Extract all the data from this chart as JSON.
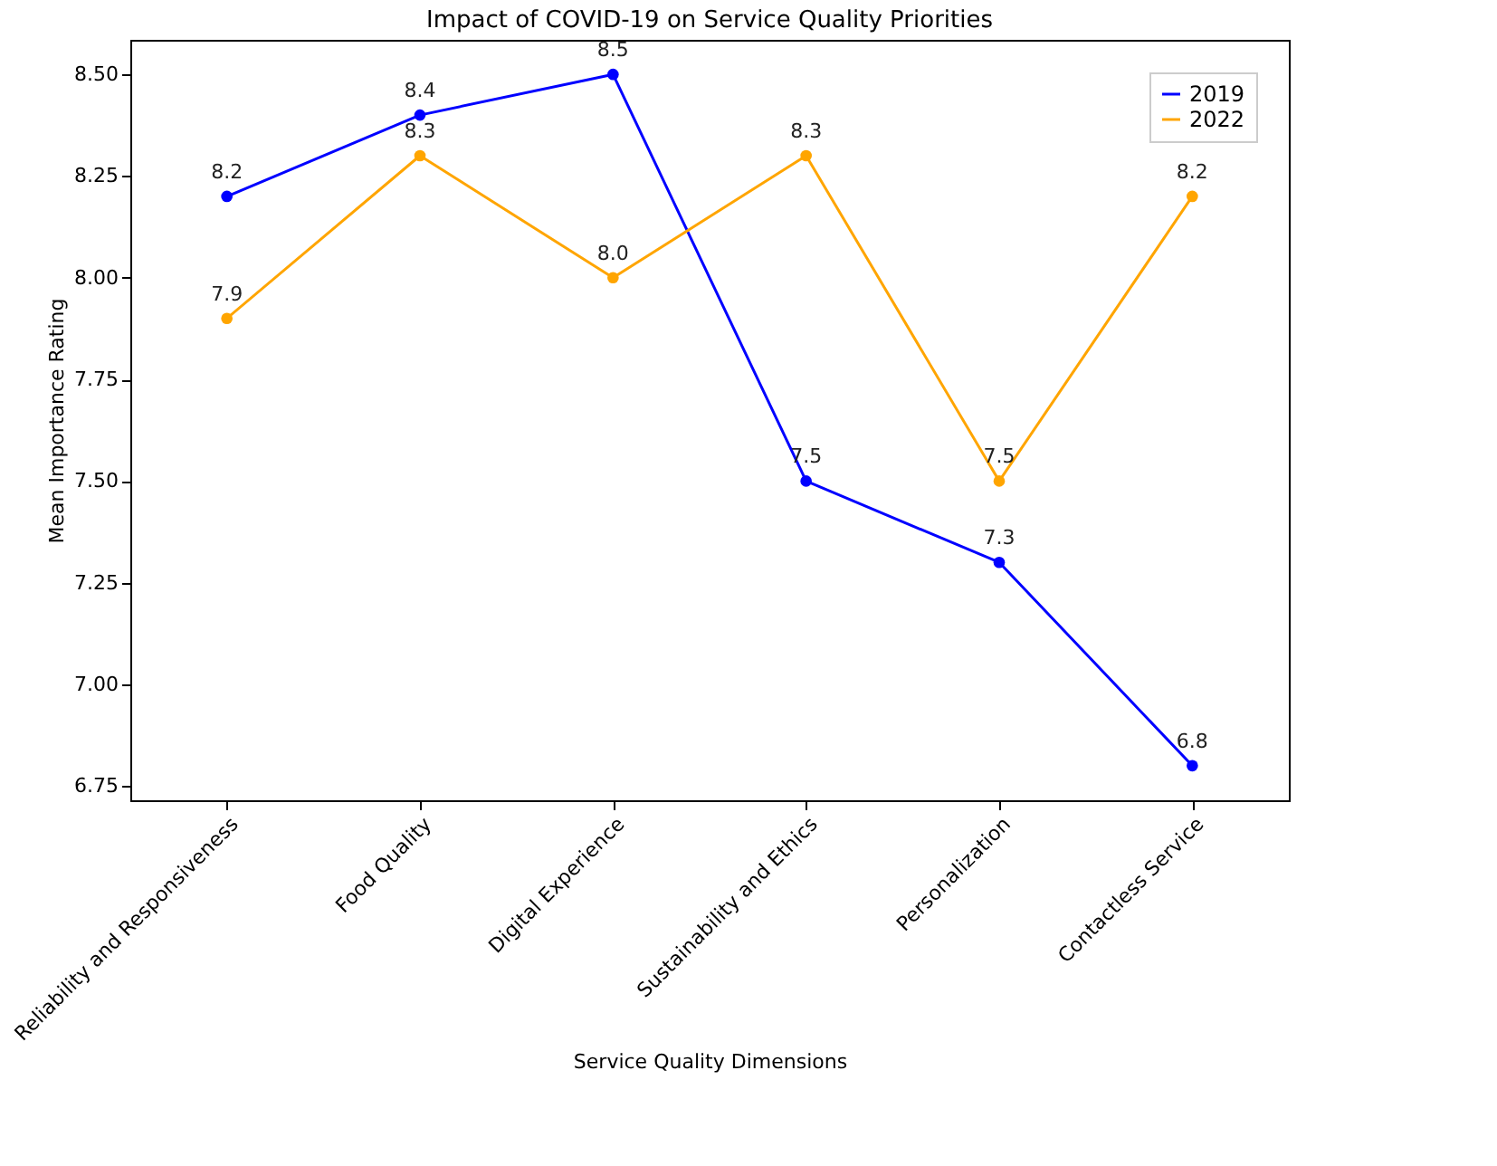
{
  "chart_data": {
    "type": "line",
    "title": "Impact of COVID-19 on Service Quality Priorities",
    "xlabel": "Service Quality Dimensions",
    "ylabel": "Mean Importance Rating",
    "categories": [
      "Reliability and Responsiveness",
      "Food Quality",
      "Digital Experience",
      "Sustainability and Ethics",
      "Personalization",
      "Contactless Service"
    ],
    "series": [
      {
        "name": "2019",
        "color": "#0000ff",
        "values": [
          8.2,
          8.4,
          8.5,
          7.5,
          7.3,
          6.8
        ],
        "value_labels": [
          "8.2",
          "8.4",
          "8.5",
          "7.5",
          "7.3",
          "6.8"
        ]
      },
      {
        "name": "2022",
        "color": "#ffa500",
        "values": [
          7.9,
          8.3,
          8.0,
          8.3,
          7.5,
          8.2
        ],
        "value_labels": [
          "7.9",
          "8.3",
          "8.0",
          "8.3",
          "7.5",
          "8.2"
        ]
      }
    ],
    "ylim": [
      6.715,
      8.585
    ],
    "yticks": [
      {
        "value": 6.75,
        "label": "6.75"
      },
      {
        "value": 7.0,
        "label": "7.00"
      },
      {
        "value": 7.25,
        "label": "7.25"
      },
      {
        "value": 7.5,
        "label": "7.50"
      },
      {
        "value": 7.75,
        "label": "7.75"
      },
      {
        "value": 8.0,
        "label": "8.00"
      },
      {
        "value": 8.25,
        "label": "8.25"
      },
      {
        "value": 8.5,
        "label": "8.50"
      }
    ],
    "marker": "circle",
    "line_style": "solid",
    "legend": "top right",
    "grid": false
  }
}
